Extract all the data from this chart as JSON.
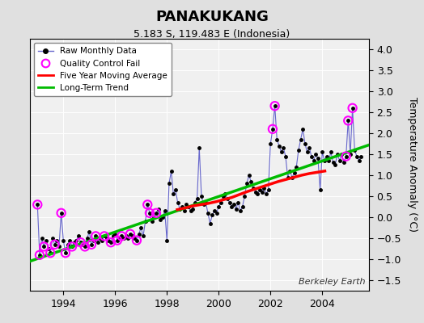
{
  "title": "PANAKUKANG",
  "subtitle": "5.183 S, 119.483 E (Indonesia)",
  "ylabel": "Temperature Anomaly (°C)",
  "watermark": "Berkeley Earth",
  "ylim": [
    -1.75,
    4.25
  ],
  "xlim": [
    1992.7,
    2005.8
  ],
  "yticks": [
    -1.5,
    -1.0,
    -0.5,
    0.0,
    0.5,
    1.0,
    1.5,
    2.0,
    2.5,
    3.0,
    3.5,
    4.0
  ],
  "xticks": [
    1994,
    1996,
    1998,
    2000,
    2002,
    2004
  ],
  "bg_color": "#e0e0e0",
  "plot_bg": "#f0f0f0",
  "raw_color": "#6666cc",
  "raw_marker_color": "#000000",
  "qc_color": "#ff00ff",
  "ma_color": "#ff0000",
  "trend_color": "#00bb00",
  "raw_data": [
    [
      1993.0,
      0.3
    ],
    [
      1993.083,
      -0.9
    ],
    [
      1993.167,
      -0.5
    ],
    [
      1993.25,
      -0.7
    ],
    [
      1993.333,
      -0.55
    ],
    [
      1993.417,
      -0.75
    ],
    [
      1993.5,
      -0.85
    ],
    [
      1993.583,
      -0.5
    ],
    [
      1993.667,
      -0.65
    ],
    [
      1993.75,
      -0.55
    ],
    [
      1993.833,
      -0.7
    ],
    [
      1993.917,
      0.1
    ],
    [
      1994.0,
      -0.55
    ],
    [
      1994.083,
      -0.85
    ],
    [
      1994.167,
      -0.65
    ],
    [
      1994.25,
      -0.55
    ],
    [
      1994.333,
      -0.7
    ],
    [
      1994.417,
      -0.6
    ],
    [
      1994.5,
      -0.55
    ],
    [
      1994.583,
      -0.45
    ],
    [
      1994.667,
      -0.6
    ],
    [
      1994.75,
      -0.65
    ],
    [
      1994.833,
      -0.7
    ],
    [
      1994.917,
      -0.5
    ],
    [
      1995.0,
      -0.35
    ],
    [
      1995.083,
      -0.65
    ],
    [
      1995.167,
      -0.55
    ],
    [
      1995.25,
      -0.45
    ],
    [
      1995.333,
      -0.6
    ],
    [
      1995.417,
      -0.5
    ],
    [
      1995.5,
      -0.55
    ],
    [
      1995.583,
      -0.45
    ],
    [
      1995.667,
      -0.5
    ],
    [
      1995.75,
      -0.55
    ],
    [
      1995.833,
      -0.6
    ],
    [
      1995.917,
      -0.45
    ],
    [
      1996.0,
      -0.4
    ],
    [
      1996.083,
      -0.55
    ],
    [
      1996.167,
      -0.5
    ],
    [
      1996.25,
      -0.45
    ],
    [
      1996.333,
      -0.5
    ],
    [
      1996.417,
      -0.45
    ],
    [
      1996.5,
      -0.5
    ],
    [
      1996.583,
      -0.4
    ],
    [
      1996.667,
      -0.45
    ],
    [
      1996.75,
      -0.5
    ],
    [
      1996.833,
      -0.55
    ],
    [
      1996.917,
      -0.4
    ],
    [
      1997.0,
      -0.25
    ],
    [
      1997.083,
      -0.45
    ],
    [
      1997.167,
      -0.1
    ],
    [
      1997.25,
      0.3
    ],
    [
      1997.333,
      0.1
    ],
    [
      1997.417,
      -0.1
    ],
    [
      1997.5,
      0.0
    ],
    [
      1997.583,
      0.1
    ],
    [
      1997.667,
      0.2
    ],
    [
      1997.75,
      -0.05
    ],
    [
      1997.833,
      0.0
    ],
    [
      1997.917,
      0.15
    ],
    [
      1998.0,
      -0.55
    ],
    [
      1998.083,
      0.8
    ],
    [
      1998.167,
      1.1
    ],
    [
      1998.25,
      0.55
    ],
    [
      1998.333,
      0.65
    ],
    [
      1998.417,
      0.35
    ],
    [
      1998.5,
      0.2
    ],
    [
      1998.583,
      0.25
    ],
    [
      1998.667,
      0.15
    ],
    [
      1998.75,
      0.3
    ],
    [
      1998.833,
      0.25
    ],
    [
      1998.917,
      0.15
    ],
    [
      1999.0,
      0.2
    ],
    [
      1999.083,
      0.35
    ],
    [
      1999.167,
      0.45
    ],
    [
      1999.25,
      1.65
    ],
    [
      1999.333,
      0.5
    ],
    [
      1999.417,
      0.3
    ],
    [
      1999.5,
      0.35
    ],
    [
      1999.583,
      0.1
    ],
    [
      1999.667,
      -0.15
    ],
    [
      1999.75,
      0.05
    ],
    [
      1999.833,
      0.15
    ],
    [
      1999.917,
      0.1
    ],
    [
      2000.0,
      0.25
    ],
    [
      2000.083,
      0.35
    ],
    [
      2000.167,
      0.5
    ],
    [
      2000.25,
      0.55
    ],
    [
      2000.333,
      0.45
    ],
    [
      2000.417,
      0.35
    ],
    [
      2000.5,
      0.25
    ],
    [
      2000.583,
      0.3
    ],
    [
      2000.667,
      0.2
    ],
    [
      2000.75,
      0.35
    ],
    [
      2000.833,
      0.15
    ],
    [
      2000.917,
      0.25
    ],
    [
      2001.0,
      0.5
    ],
    [
      2001.083,
      0.8
    ],
    [
      2001.167,
      1.0
    ],
    [
      2001.25,
      0.85
    ],
    [
      2001.333,
      0.7
    ],
    [
      2001.417,
      0.6
    ],
    [
      2001.5,
      0.55
    ],
    [
      2001.583,
      0.65
    ],
    [
      2001.667,
      0.6
    ],
    [
      2001.75,
      0.7
    ],
    [
      2001.833,
      0.55
    ],
    [
      2001.917,
      0.65
    ],
    [
      2002.0,
      1.75
    ],
    [
      2002.083,
      2.1
    ],
    [
      2002.167,
      2.65
    ],
    [
      2002.25,
      1.85
    ],
    [
      2002.333,
      1.7
    ],
    [
      2002.417,
      1.55
    ],
    [
      2002.5,
      1.65
    ],
    [
      2002.583,
      1.45
    ],
    [
      2002.667,
      0.95
    ],
    [
      2002.75,
      1.1
    ],
    [
      2002.833,
      0.95
    ],
    [
      2002.917,
      1.05
    ],
    [
      2003.0,
      1.2
    ],
    [
      2003.083,
      1.6
    ],
    [
      2003.167,
      1.85
    ],
    [
      2003.25,
      2.1
    ],
    [
      2003.333,
      1.75
    ],
    [
      2003.417,
      1.55
    ],
    [
      2003.5,
      1.65
    ],
    [
      2003.583,
      1.45
    ],
    [
      2003.667,
      1.35
    ],
    [
      2003.75,
      1.5
    ],
    [
      2003.833,
      1.4
    ],
    [
      2003.917,
      0.65
    ],
    [
      2004.0,
      1.55
    ],
    [
      2004.083,
      1.35
    ],
    [
      2004.167,
      1.45
    ],
    [
      2004.25,
      1.35
    ],
    [
      2004.333,
      1.55
    ],
    [
      2004.417,
      1.3
    ],
    [
      2004.5,
      1.25
    ],
    [
      2004.583,
      1.5
    ],
    [
      2004.667,
      1.35
    ],
    [
      2004.75,
      1.5
    ],
    [
      2004.833,
      1.3
    ],
    [
      2004.917,
      1.45
    ],
    [
      2005.0,
      2.3
    ],
    [
      2005.083,
      1.5
    ],
    [
      2005.167,
      2.6
    ],
    [
      2005.25,
      1.6
    ],
    [
      2005.333,
      1.45
    ],
    [
      2005.417,
      1.35
    ],
    [
      2005.5,
      1.45
    ]
  ],
  "qc_fail_x": [
    1993.0,
    1993.083,
    1993.25,
    1993.5,
    1993.667,
    1993.917,
    1994.083,
    1994.333,
    1994.667,
    1994.833,
    1995.083,
    1995.25,
    1995.583,
    1995.833,
    1996.083,
    1996.25,
    1996.583,
    1996.833,
    1997.25,
    1997.333,
    1997.583,
    2002.083,
    2002.167,
    2004.917,
    2005.0,
    2005.167
  ],
  "qc_fail_y": [
    0.3,
    -0.9,
    -0.7,
    -0.85,
    -0.65,
    0.1,
    -0.85,
    -0.7,
    -0.6,
    -0.7,
    -0.65,
    -0.45,
    -0.45,
    -0.6,
    -0.55,
    -0.45,
    -0.4,
    -0.55,
    0.3,
    0.1,
    0.1,
    2.1,
    2.65,
    1.45,
    2.3,
    2.6
  ],
  "trend_x": [
    1992.7,
    2005.8
  ],
  "trend_y": [
    -1.05,
    1.72
  ],
  "ma_x": [
    1998.4,
    1998.7,
    1999.0,
    1999.3,
    1999.6,
    1999.9,
    2000.2,
    2000.5,
    2000.8,
    2001.1,
    2001.4,
    2001.7,
    2002.0,
    2002.3,
    2002.6,
    2002.9,
    2003.2,
    2003.5,
    2003.8,
    2004.1
  ],
  "ma_y": [
    0.18,
    0.22,
    0.27,
    0.3,
    0.33,
    0.37,
    0.42,
    0.47,
    0.54,
    0.61,
    0.67,
    0.73,
    0.79,
    0.85,
    0.9,
    0.95,
    1.0,
    1.04,
    1.07,
    1.1
  ]
}
